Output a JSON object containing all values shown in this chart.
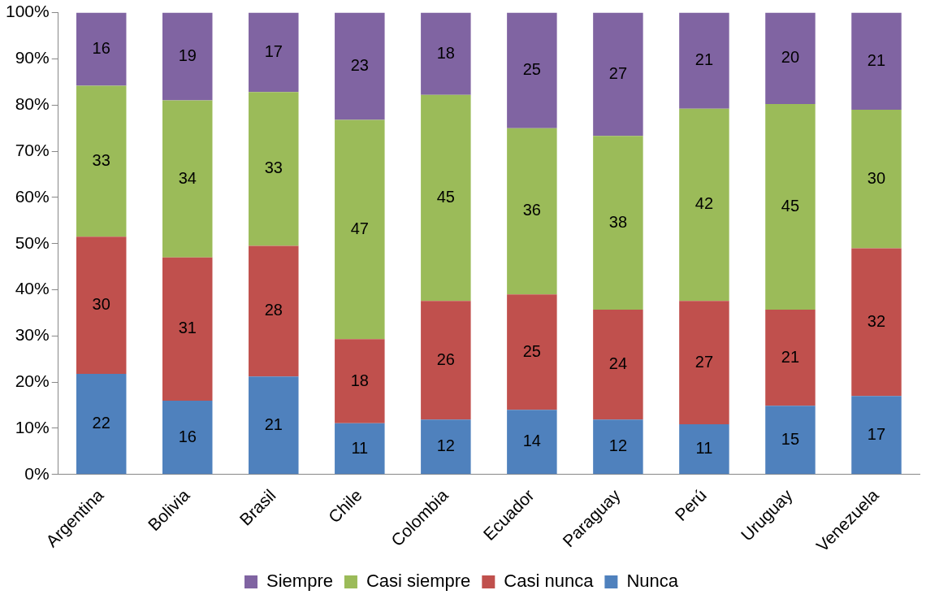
{
  "chart_data": {
    "type": "bar",
    "stacked": true,
    "grid": false,
    "legend": "bottom",
    "categories": [
      "Argentina",
      "Bolivia",
      "Brasil",
      "Chile",
      "Colombia",
      "Ecuador",
      "Paraguay",
      "Perú",
      "Uruguay",
      "Venezuela"
    ],
    "ylim": [
      0,
      100
    ],
    "yticks": [
      {
        "value": 0,
        "label": "0%"
      },
      {
        "value": 10,
        "label": "10%"
      },
      {
        "value": 20,
        "label": "20%"
      },
      {
        "value": 30,
        "label": "30%"
      },
      {
        "value": 40,
        "label": "40%"
      },
      {
        "value": 50,
        "label": "50%"
      },
      {
        "value": 60,
        "label": "60%"
      },
      {
        "value": 70,
        "label": "70%"
      },
      {
        "value": 80,
        "label": "80%"
      },
      {
        "value": 90,
        "label": "90%"
      },
      {
        "value": 100,
        "label": "100%"
      }
    ],
    "series": [
      {
        "name": "Nunca",
        "color": "#4f81bd",
        "values": [
          21.8,
          16,
          21.2,
          11.1,
          11.9,
          14,
          11.9,
          10.9,
          14.9,
          17
        ],
        "value_labels": [
          "22",
          "16",
          "21",
          "11",
          "12",
          "14",
          "12",
          "11",
          "15",
          "17"
        ]
      },
      {
        "name": "Casi nunca",
        "color": "#c0504d",
        "values": [
          29.7,
          31,
          28.3,
          18.2,
          25.7,
          25,
          23.8,
          26.7,
          20.8,
          32
        ],
        "value_labels": [
          "30",
          "31",
          "28",
          "18",
          "26",
          "25",
          "24",
          "27",
          "21",
          "32"
        ]
      },
      {
        "name": "Casi siempre",
        "color": "#9bbb59",
        "values": [
          32.7,
          34,
          33.3,
          47.5,
          44.6,
          36,
          37.6,
          41.6,
          44.5,
          30
        ],
        "value_labels": [
          "33",
          "34",
          "33",
          "47",
          "45",
          "36",
          "38",
          "42",
          "45",
          "30"
        ]
      },
      {
        "name": "Siempre",
        "color": "#8064a2",
        "values": [
          15.8,
          19,
          17.2,
          23.2,
          17.8,
          25,
          26.7,
          20.8,
          19.8,
          21
        ],
        "value_labels": [
          "16",
          "19",
          "17",
          "23",
          "18",
          "25",
          "27",
          "21",
          "20",
          "21"
        ]
      }
    ]
  }
}
